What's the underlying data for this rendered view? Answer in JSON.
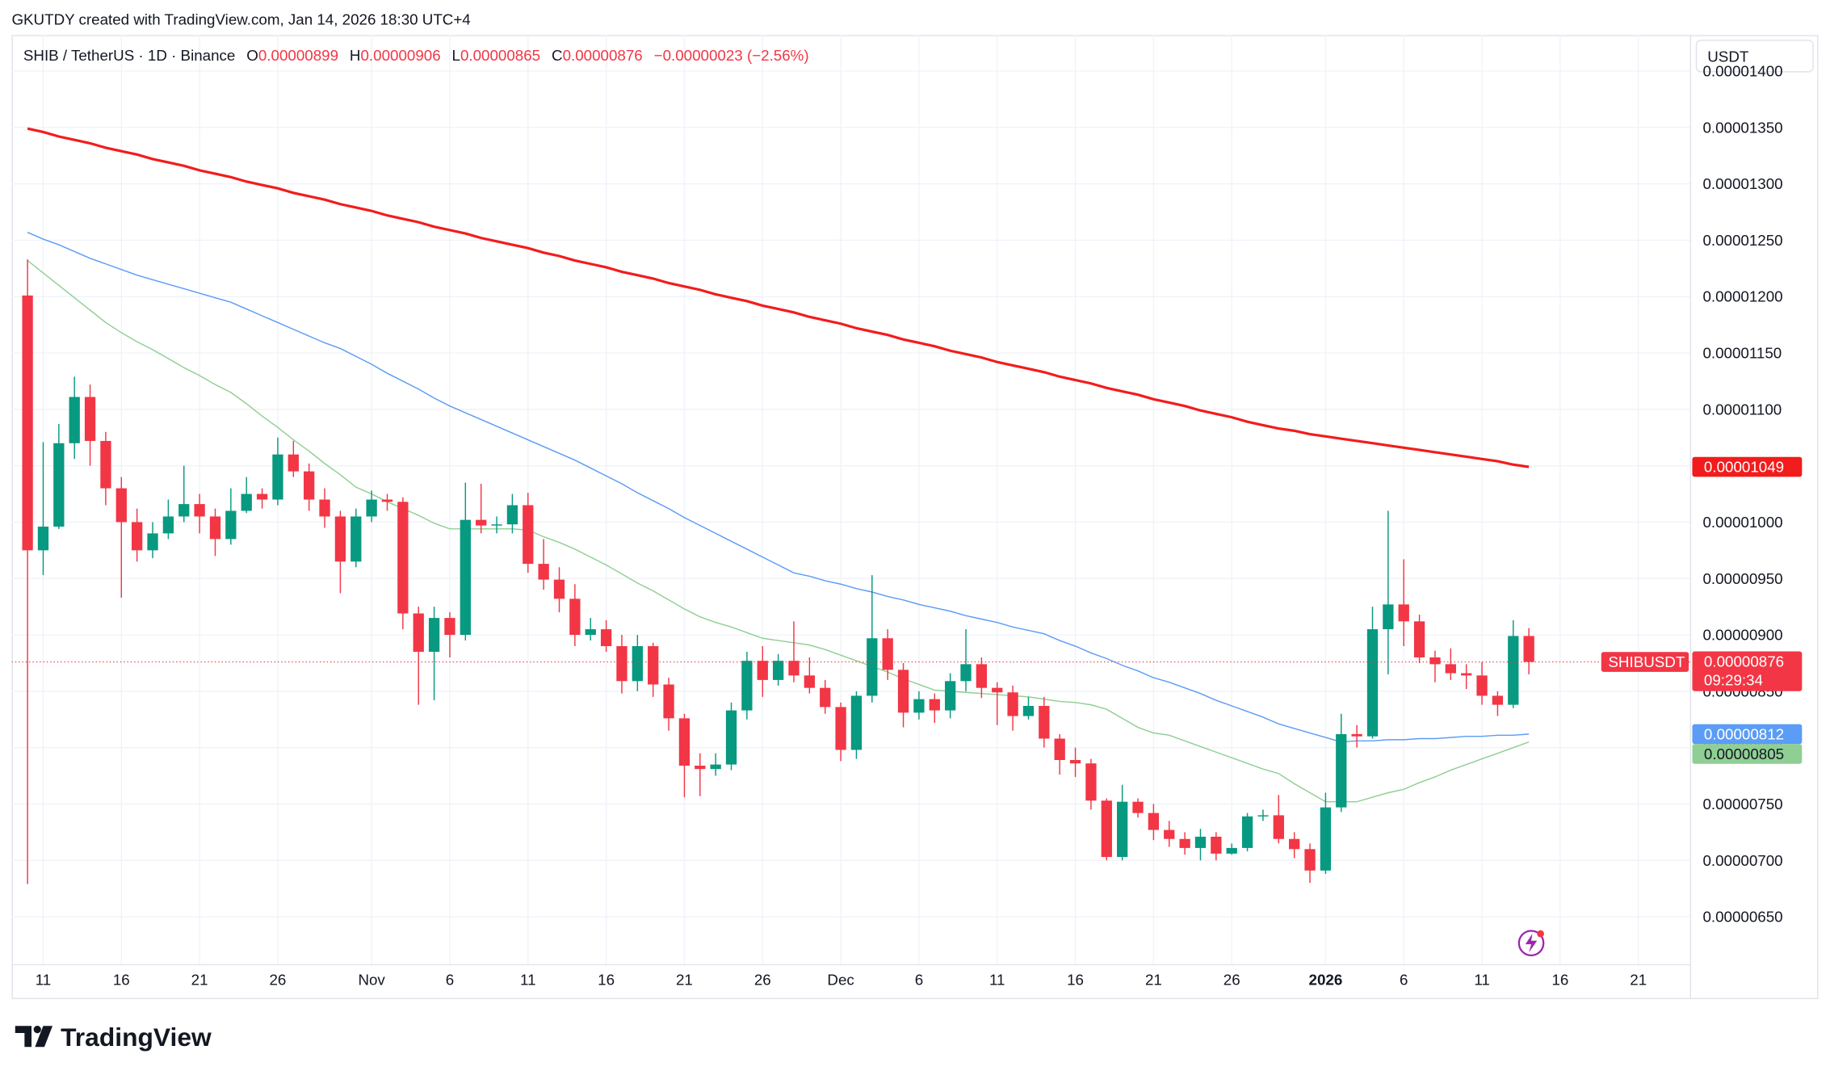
{
  "header": {
    "credit": "GKUTDY created with TradingView.com, Jan 14, 2026 18:30 UTC+4",
    "symbol": "SHIB / TetherUS · 1D · Binance",
    "ohlc": [
      {
        "label": "O",
        "value": "0.00000899"
      },
      {
        "label": "H",
        "value": "0.00000906"
      },
      {
        "label": "L",
        "value": "0.00000865"
      },
      {
        "label": "C",
        "value": "0.00000876"
      }
    ],
    "change": "−0.00000023 (−2.56%)",
    "currency": "USDT",
    "brand": "TradingView"
  },
  "chart_data": {
    "type": "candlestick",
    "categories": [
      null,
      "11",
      null,
      null,
      null,
      null,
      "16",
      null,
      null,
      null,
      null,
      "21",
      null,
      null,
      null,
      null,
      "26",
      null,
      null,
      null,
      null,
      null,
      "Nov",
      null,
      null,
      null,
      null,
      "6",
      null,
      null,
      null,
      null,
      "11",
      null,
      null,
      null,
      null,
      "16",
      null,
      null,
      null,
      null,
      "21",
      null,
      null,
      null,
      null,
      "26",
      null,
      null,
      null,
      null,
      "Dec",
      null,
      null,
      null,
      null,
      "6",
      null,
      null,
      null,
      null,
      "11",
      null,
      null,
      null,
      null,
      "16",
      null,
      null,
      null,
      null,
      "21",
      null,
      null,
      null,
      null,
      "26",
      null,
      null,
      null,
      null,
      null,
      "2026",
      null,
      null,
      null,
      null,
      "6",
      null,
      null,
      null,
      null,
      "11",
      null,
      null,
      null,
      null,
      "16",
      null,
      null,
      null,
      null,
      "21"
    ],
    "open": [
      1.201e-05,
      9.75e-06,
      9.96e-06,
      1.07e-05,
      1.111e-05,
      1.072e-05,
      1.03e-05,
      1e-05,
      9.75e-06,
      9.9e-06,
      1.005e-05,
      1.016e-05,
      1.005e-05,
      9.85e-06,
      1.01e-05,
      1.025e-05,
      1.02e-05,
      1.06e-05,
      1.045e-05,
      1.02e-05,
      1.005e-05,
      9.65e-06,
      1.005e-05,
      1.02e-05,
      1.018e-05,
      9.19e-06,
      8.85e-06,
      9.15e-06,
      9e-06,
      1.002e-05,
      9.97e-06,
      9.98e-06,
      1.015e-05,
      9.63e-06,
      9.49e-06,
      9.32e-06,
      9e-06,
      9.05e-06,
      8.9e-06,
      8.59e-06,
      8.9e-06,
      8.56e-06,
      8.26e-06,
      7.84e-06,
      7.81e-06,
      7.85e-06,
      8.33e-06,
      8.77e-06,
      8.6e-06,
      8.77e-06,
      8.64e-06,
      8.53e-06,
      8.36e-06,
      7.98e-06,
      8.46e-06,
      8.97e-06,
      8.69e-06,
      8.31e-06,
      8.43e-06,
      8.33e-06,
      8.59e-06,
      8.74e-06,
      8.53e-06,
      8.49e-06,
      8.28e-06,
      8.37e-06,
      8.08e-06,
      7.89e-06,
      7.86e-06,
      7.53e-06,
      7.03e-06,
      7.52e-06,
      7.42e-06,
      7.27e-06,
      7.19e-06,
      7.11e-06,
      7.21e-06,
      7.06e-06,
      7.11e-06,
      7.39e-06,
      7.4e-06,
      7.19e-06,
      7.1e-06,
      6.91e-06,
      7.47e-06,
      8.12e-06,
      8.1e-06,
      9.05e-06,
      9.27e-06,
      9.12e-06,
      8.8e-06,
      8.74e-06,
      8.66e-06,
      8.64e-06,
      8.46e-06,
      8.38e-06,
      8.99e-06,
      null,
      null,
      null,
      null,
      null,
      null,
      null
    ],
    "high": [
      1.233e-05,
      1.071e-05,
      1.087e-05,
      1.129e-05,
      1.122e-05,
      1.08e-05,
      1.04e-05,
      1.012e-05,
      1e-05,
      1.02e-05,
      1.05e-05,
      1.025e-05,
      1.012e-05,
      1.03e-05,
      1.04e-05,
      1.03e-05,
      1.075e-05,
      1.072e-05,
      1.052e-05,
      1.03e-05,
      1.01e-05,
      1.012e-05,
      1.028e-05,
      1.025e-05,
      1.022e-05,
      9.25e-06,
      9.25e-06,
      9.2e-06,
      1.035e-05,
      1.034e-05,
      1.005e-05,
      1.025e-05,
      1.026e-05,
      9.85e-06,
      9.6e-06,
      9.45e-06,
      9.15e-06,
      9.13e-06,
      9e-06,
      9e-06,
      8.93e-06,
      8.62e-06,
      8.3e-06,
      7.95e-06,
      7.95e-06,
      8.4e-06,
      8.85e-06,
      8.9e-06,
      8.83e-06,
      9.12e-06,
      8.8e-06,
      8.6e-06,
      8.4e-06,
      8.5e-06,
      9.53e-06,
      9.05e-06,
      8.75e-06,
      8.5e-06,
      8.48e-06,
      8.66e-06,
      9.05e-06,
      8.8e-06,
      8.58e-06,
      8.55e-06,
      8.45e-06,
      8.45e-06,
      8.12e-06,
      8e-06,
      7.9e-06,
      7.55e-06,
      7.67e-06,
      7.55e-06,
      7.5e-06,
      7.35e-06,
      7.25e-06,
      7.28e-06,
      7.25e-06,
      7.15e-06,
      7.42e-06,
      7.45e-06,
      7.58e-06,
      7.25e-06,
      7.15e-06,
      7.6e-06,
      8.3e-06,
      8.2e-06,
      9.25e-06,
      1.01e-05,
      9.67e-06,
      9.18e-06,
      8.86e-06,
      8.88e-06,
      8.74e-06,
      8.76e-06,
      8.5e-06,
      9.13e-06,
      9.06e-06,
      null,
      null,
      null,
      null,
      null,
      null,
      null
    ],
    "low": [
      6.79e-06,
      9.53e-06,
      9.94e-06,
      1.056e-05,
      1.05e-05,
      1.015e-05,
      9.33e-06,
      9.65e-06,
      9.68e-06,
      9.85e-06,
      1e-05,
      9.9e-06,
      9.7e-06,
      9.8e-06,
      1.008e-05,
      1.012e-05,
      1.015e-05,
      1.04e-05,
      1.01e-05,
      9.95e-06,
      9.37e-06,
      9.6e-06,
      1e-05,
      1.01e-05,
      9.05e-06,
      8.38e-06,
      8.42e-06,
      8.8e-06,
      8.95e-06,
      9.9e-06,
      9.9e-06,
      9.9e-06,
      9.55e-06,
      9.4e-06,
      9.2e-06,
      8.9e-06,
      8.95e-06,
      8.85e-06,
      8.48e-06,
      8.5e-06,
      8.45e-06,
      8.15e-06,
      7.56e-06,
      7.57e-06,
      7.75e-06,
      7.8e-06,
      8.25e-06,
      8.45e-06,
      8.55e-06,
      8.58e-06,
      8.48e-06,
      8.3e-06,
      7.88e-06,
      7.9e-06,
      8.4e-06,
      8.6e-06,
      8.18e-06,
      8.25e-06,
      8.22e-06,
      8.26e-06,
      8.5e-06,
      8.44e-06,
      8.2e-06,
      8.15e-06,
      8.25e-06,
      8e-06,
      7.76e-06,
      7.74e-06,
      7.45e-06,
      7e-06,
      7e-06,
      7.38e-06,
      7.18e-06,
      7.12e-06,
      7.05e-06,
      7e-06,
      7e-06,
      7.05e-06,
      7.08e-06,
      7.35e-06,
      7.15e-06,
      7.02e-06,
      6.8e-06,
      6.88e-06,
      7.43e-06,
      8e-06,
      8.08e-06,
      8.65e-06,
      8.9e-06,
      8.75e-06,
      8.58e-06,
      8.6e-06,
      8.52e-06,
      8.38e-06,
      8.28e-06,
      8.35e-06,
      8.65e-06,
      null,
      null,
      null,
      null,
      null,
      null,
      null
    ],
    "close": [
      9.75e-06,
      9.96e-06,
      1.07e-05,
      1.111e-05,
      1.072e-05,
      1.03e-05,
      1e-05,
      9.75e-06,
      9.9e-06,
      1.005e-05,
      1.016e-05,
      1.005e-05,
      9.85e-06,
      1.01e-05,
      1.025e-05,
      1.02e-05,
      1.06e-05,
      1.045e-05,
      1.02e-05,
      1.005e-05,
      9.65e-06,
      1.005e-05,
      1.02e-05,
      1.018e-05,
      9.19e-06,
      8.85e-06,
      9.15e-06,
      9e-06,
      1.002e-05,
      9.97e-06,
      9.98e-06,
      1.015e-05,
      9.63e-06,
      9.49e-06,
      9.32e-06,
      9e-06,
      9.05e-06,
      8.9e-06,
      8.59e-06,
      8.9e-06,
      8.56e-06,
      8.26e-06,
      7.84e-06,
      7.81e-06,
      7.85e-06,
      8.33e-06,
      8.77e-06,
      8.6e-06,
      8.77e-06,
      8.64e-06,
      8.53e-06,
      8.36e-06,
      7.98e-06,
      8.46e-06,
      8.97e-06,
      8.69e-06,
      8.31e-06,
      8.43e-06,
      8.33e-06,
      8.59e-06,
      8.74e-06,
      8.53e-06,
      8.49e-06,
      8.28e-06,
      8.37e-06,
      8.08e-06,
      7.89e-06,
      7.86e-06,
      7.53e-06,
      7.03e-06,
      7.52e-06,
      7.42e-06,
      7.27e-06,
      7.19e-06,
      7.11e-06,
      7.21e-06,
      7.06e-06,
      7.11e-06,
      7.39e-06,
      7.4e-06,
      7.19e-06,
      7.1e-06,
      6.91e-06,
      7.47e-06,
      8.12e-06,
      8.1e-06,
      9.05e-06,
      9.27e-06,
      9.12e-06,
      8.8e-06,
      8.74e-06,
      8.66e-06,
      8.64e-06,
      8.46e-06,
      8.38e-06,
      8.99e-06,
      8.76e-06,
      null,
      null,
      null,
      null,
      null,
      null,
      null
    ],
    "up_color": "#089981",
    "down_color": "#f23645",
    "symbol_tag": "SHIBUSDT",
    "last_close_label": "0.00000876",
    "countdown": "09:29:34",
    "series": [
      {
        "color": "#f21c1c",
        "width": 2.2,
        "last_value_label": "0.00001049",
        "values": [
          1.349e-05,
          1.346e-05,
          1.342e-05,
          1.339e-05,
          1.336e-05,
          1.332e-05,
          1.329e-05,
          1.326e-05,
          1.322e-05,
          1.319e-05,
          1.316e-05,
          1.312e-05,
          1.309e-05,
          1.306e-05,
          1.302e-05,
          1.299e-05,
          1.296e-05,
          1.292e-05,
          1.289e-05,
          1.286e-05,
          1.282e-05,
          1.279e-05,
          1.276e-05,
          1.272e-05,
          1.269e-05,
          1.266e-05,
          1.262e-05,
          1.259e-05,
          1.256e-05,
          1.252e-05,
          1.249e-05,
          1.246e-05,
          1.243e-05,
          1.239e-05,
          1.236e-05,
          1.232e-05,
          1.229e-05,
          1.226e-05,
          1.222e-05,
          1.219e-05,
          1.216e-05,
          1.212e-05,
          1.209e-05,
          1.206e-05,
          1.202e-05,
          1.199e-05,
          1.196e-05,
          1.192e-05,
          1.189e-05,
          1.186e-05,
          1.182e-05,
          1.179e-05,
          1.176e-05,
          1.172e-05,
          1.169e-05,
          1.166e-05,
          1.162e-05,
          1.159e-05,
          1.156e-05,
          1.152e-05,
          1.149e-05,
          1.146e-05,
          1.142e-05,
          1.139e-05,
          1.136e-05,
          1.133e-05,
          1.129e-05,
          1.126e-05,
          1.123e-05,
          1.119e-05,
          1.116e-05,
          1.113e-05,
          1.109e-05,
          1.106e-05,
          1.103e-05,
          1.099e-05,
          1.096e-05,
          1.093e-05,
          1.089e-05,
          1.086e-05,
          1.083e-05,
          1.081e-05,
          1.078e-05,
          1.076e-05,
          1.074e-05,
          1.072e-05,
          1.07e-05,
          1.068e-05,
          1.066e-05,
          1.064e-05,
          1.062e-05,
          1.06e-05,
          1.058e-05,
          1.056e-05,
          1.054e-05,
          1.051e-05,
          1.049e-05,
          null,
          null,
          null,
          null,
          null,
          null,
          null
        ]
      },
      {
        "color": "#5b9cf6",
        "width": 1,
        "last_value_label": "0.00000812",
        "values": [
          1.257e-05,
          1.251e-05,
          1.246e-05,
          1.24e-05,
          1.234e-05,
          1.229e-05,
          1.224e-05,
          1.219e-05,
          1.215e-05,
          1.211e-05,
          1.207e-05,
          1.203e-05,
          1.199e-05,
          1.195e-05,
          1.189e-05,
          1.183e-05,
          1.177e-05,
          1.171e-05,
          1.165e-05,
          1.159e-05,
          1.154e-05,
          1.147e-05,
          1.14e-05,
          1.132e-05,
          1.125e-05,
          1.118e-05,
          1.11e-05,
          1.103e-05,
          1.097e-05,
          1.091e-05,
          1.085e-05,
          1.079e-05,
          1.073e-05,
          1.067e-05,
          1.061e-05,
          1.055e-05,
          1.048e-05,
          1.041e-05,
          1.034e-05,
          1.026e-05,
          1.019e-05,
          1.012e-05,
          1.004e-05,
          9.97e-06,
          9.9e-06,
          9.83e-06,
          9.76e-06,
          9.69e-06,
          9.62e-06,
          9.55e-06,
          9.52e-06,
          9.48e-06,
          9.45e-06,
          9.41e-06,
          9.38e-06,
          9.34e-06,
          9.31e-06,
          9.27e-06,
          9.24e-06,
          9.21e-06,
          9.17e-06,
          9.14e-06,
          9.11e-06,
          9.07e-06,
          9.04e-06,
          9.01e-06,
          8.95e-06,
          8.9e-06,
          8.84e-06,
          8.79e-06,
          8.73e-06,
          8.68e-06,
          8.62e-06,
          8.58e-06,
          8.53e-06,
          8.48e-06,
          8.42e-06,
          8.37e-06,
          8.32e-06,
          8.27e-06,
          8.21e-06,
          8.17e-06,
          8.13e-06,
          8.09e-06,
          8.05e-06,
          8.06e-06,
          8.06e-06,
          8.07e-06,
          8.07e-06,
          8.08e-06,
          8.08e-06,
          8.09e-06,
          8.1e-06,
          8.1e-06,
          8.11e-06,
          8.11e-06,
          8.12e-06,
          null,
          null,
          null,
          null,
          null,
          null,
          null
        ]
      },
      {
        "color": "#8fcf94",
        "width": 1,
        "last_value_label": "0.00000805",
        "values": [
          1.232e-05,
          1.221e-05,
          1.21e-05,
          1.199e-05,
          1.188e-05,
          1.177e-05,
          1.168e-05,
          1.16e-05,
          1.153e-05,
          1.145e-05,
          1.137e-05,
          1.13e-05,
          1.122e-05,
          1.115e-05,
          1.105e-05,
          1.094e-05,
          1.084e-05,
          1.073e-05,
          1.063e-05,
          1.052e-05,
          1.042e-05,
          1.031e-05,
          1.025e-05,
          1.018e-05,
          1.012e-05,
          1.006e-05,
          9.99e-06,
          9.94e-06,
          9.94e-06,
          9.94e-06,
          9.94e-06,
          9.94e-06,
          9.93e-06,
          9.87e-06,
          9.82e-06,
          9.76e-06,
          9.69e-06,
          9.62e-06,
          9.54e-06,
          9.46e-06,
          9.39e-06,
          9.31e-06,
          9.23e-06,
          9.16e-06,
          9.11e-06,
          9.07e-06,
          9.02e-06,
          8.97e-06,
          8.95e-06,
          8.93e-06,
          8.91e-06,
          8.87e-06,
          8.82e-06,
          8.77e-06,
          8.72e-06,
          8.67e-06,
          8.61e-06,
          8.56e-06,
          8.51e-06,
          8.5e-06,
          8.49e-06,
          8.48e-06,
          8.47e-06,
          8.46e-06,
          8.45e-06,
          8.43e-06,
          8.41e-06,
          8.4e-06,
          8.38e-06,
          8.34e-06,
          8.26e-06,
          8.18e-06,
          8.13e-06,
          8.11e-06,
          8.06e-06,
          8.01e-06,
          7.96e-06,
          7.91e-06,
          7.86e-06,
          7.81e-06,
          7.77e-06,
          7.68e-06,
          7.6e-06,
          7.52e-06,
          7.52e-06,
          7.52e-06,
          7.56e-06,
          7.6e-06,
          7.63e-06,
          7.69e-06,
          7.74e-06,
          7.8e-06,
          7.85e-06,
          7.9e-06,
          7.95e-06,
          8e-06,
          8.05e-06,
          null,
          null,
          null,
          null,
          null,
          null,
          null
        ]
      }
    ],
    "ylim": [
      6.08e-06,
      1.432e-05
    ],
    "yticks": [
      {
        "value": 6.5e-06,
        "label": "0.00000650"
      },
      {
        "value": 7e-06,
        "label": "0.00000700"
      },
      {
        "value": 7.5e-06,
        "label": "0.00000750"
      },
      {
        "value": 8e-06,
        "label": "0.00000800"
      },
      {
        "value": 8.5e-06,
        "label": "0.00000850"
      },
      {
        "value": 9e-06,
        "label": "0.00000900"
      },
      {
        "value": 9.5e-06,
        "label": "0.00000950"
      },
      {
        "value": 1e-05,
        "label": "0.00001000"
      },
      {
        "value": 1.05e-05,
        "label": "0.00001050"
      },
      {
        "value": 1.1e-05,
        "label": "0.00001100"
      },
      {
        "value": 1.15e-05,
        "label": "0.00001150"
      },
      {
        "value": 1.2e-05,
        "label": "0.00001200"
      },
      {
        "value": 1.25e-05,
        "label": "0.00001250"
      },
      {
        "value": 1.3e-05,
        "label": "0.00001300"
      },
      {
        "value": 1.35e-05,
        "label": "0.00001350"
      },
      {
        "value": 1.4e-05,
        "label": "0.00001400"
      }
    ],
    "grid": true
  }
}
